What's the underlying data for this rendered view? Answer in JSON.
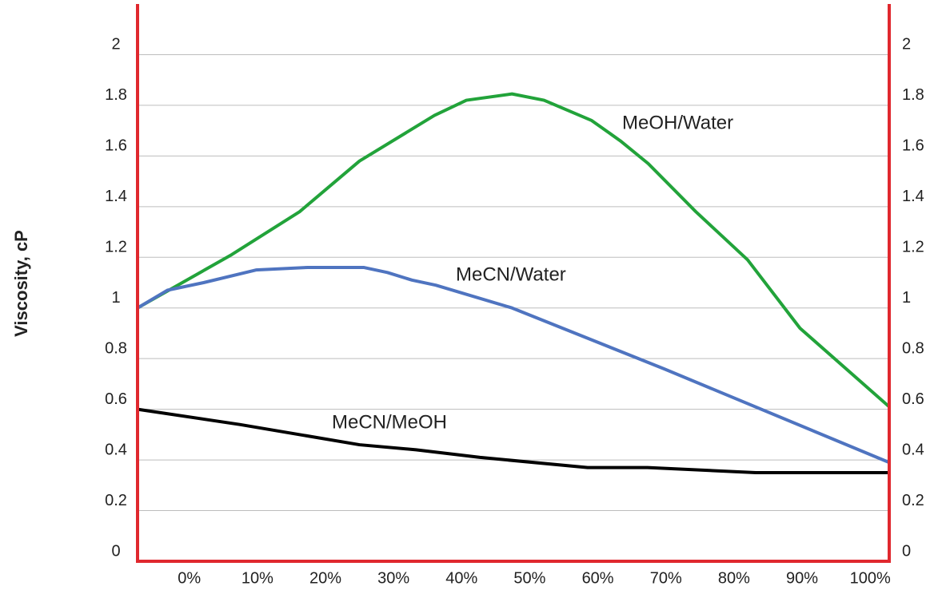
{
  "chart_data": {
    "type": "line",
    "y_label": "Viscosity, cP",
    "xlim": [
      -7.6,
      102.8
    ],
    "xticks": [
      {
        "value": 0,
        "label": "0%"
      },
      {
        "value": 10,
        "label": "10%"
      },
      {
        "value": 20,
        "label": "20%"
      },
      {
        "value": 30,
        "label": "30%"
      },
      {
        "value": 40,
        "label": "40%"
      },
      {
        "value": 50,
        "label": "50%"
      },
      {
        "value": 60,
        "label": "60%"
      },
      {
        "value": 70,
        "label": "70%"
      },
      {
        "value": 80,
        "label": "80%"
      },
      {
        "value": 90,
        "label": "90%"
      },
      {
        "value": 100,
        "label": "100%"
      }
    ],
    "ylim": [
      0,
      2.2
    ],
    "yticks": [
      0,
      0.2,
      0.4,
      0.6,
      0.8,
      1,
      1.2,
      1.4,
      1.6,
      1.8,
      2
    ],
    "grid": true,
    "axis_color": "#e0282e",
    "series": [
      {
        "name": "MeOH/Water",
        "color": "#22a33a",
        "x": [
          -7.6,
          6.2,
          16.2,
          25.0,
          36.0,
          40.7,
          47.4,
          52.1,
          59.1,
          63.3,
          67.4,
          74.4,
          82.0,
          89.7,
          102.8
        ],
        "values": [
          1.0,
          1.21,
          1.38,
          1.58,
          1.76,
          1.82,
          1.845,
          1.82,
          1.74,
          1.66,
          1.57,
          1.38,
          1.19,
          0.92,
          0.61
        ]
      },
      {
        "name": "MeCN/Water",
        "color": "#4f74c0",
        "x": [
          -7.6,
          -3.2,
          2.1,
          9.8,
          17.4,
          21.5,
          25.6,
          29.1,
          32.7,
          36.2,
          47.4,
          69.7,
          102.8
        ],
        "values": [
          1.0,
          1.07,
          1.1,
          1.15,
          1.16,
          1.16,
          1.16,
          1.14,
          1.11,
          1.09,
          1.0,
          0.76,
          0.39
        ]
      },
      {
        "name": "MeCN/MeOH",
        "color": "#000000",
        "x": [
          -7.6,
          7.4,
          25.0,
          33.3,
          42.7,
          58.5,
          67.3,
          83.2,
          102.8
        ],
        "values": [
          0.6,
          0.54,
          0.46,
          0.44,
          0.41,
          0.37,
          0.37,
          0.35,
          0.35
        ]
      }
    ]
  }
}
